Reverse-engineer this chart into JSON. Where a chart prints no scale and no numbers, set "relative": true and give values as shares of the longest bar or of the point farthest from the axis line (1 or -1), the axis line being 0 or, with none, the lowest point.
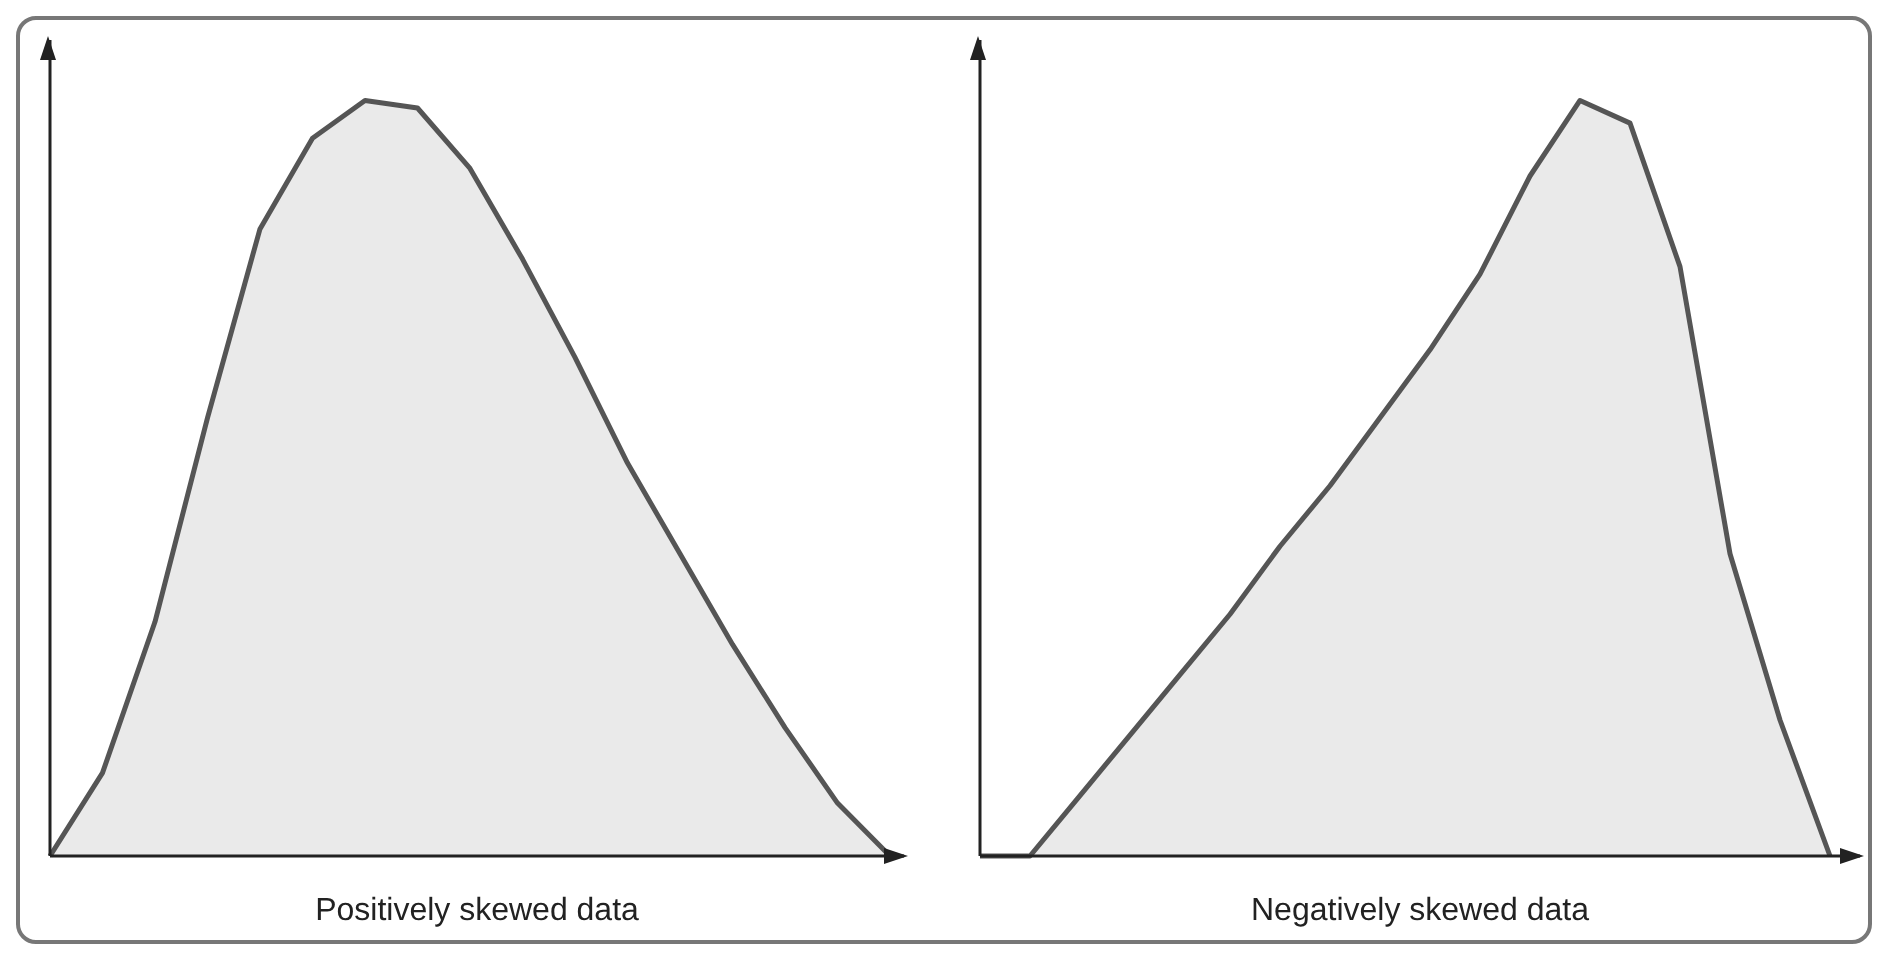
{
  "chart_data": [
    {
      "type": "area",
      "xlabel": "Positively skewed data",
      "relative": true,
      "color": "#555555",
      "categories": [
        null,
        null,
        null,
        null,
        null,
        null,
        null,
        null,
        null,
        null,
        null,
        null,
        null,
        null,
        null,
        null,
        null
      ],
      "values": [
        0,
        0.11,
        0.31,
        0.58,
        0.83,
        0.95,
        1.0,
        0.99,
        0.91,
        0.79,
        0.66,
        0.52,
        0.4,
        0.28,
        0.17,
        0.07,
        0
      ]
    },
    {
      "type": "area",
      "xlabel": "Negatively skewed data",
      "relative": true,
      "color": "#555555",
      "categories": [
        null,
        null,
        null,
        null,
        null,
        null,
        null,
        null,
        null,
        null,
        null,
        null,
        null,
        null,
        null,
        null,
        null,
        null
      ],
      "values": [
        0,
        0,
        0.08,
        0.16,
        0.24,
        0.32,
        0.41,
        0.49,
        0.58,
        0.67,
        0.77,
        0.9,
        1.0,
        0.97,
        0.78,
        0.4,
        0.18,
        0
      ]
    }
  ]
}
